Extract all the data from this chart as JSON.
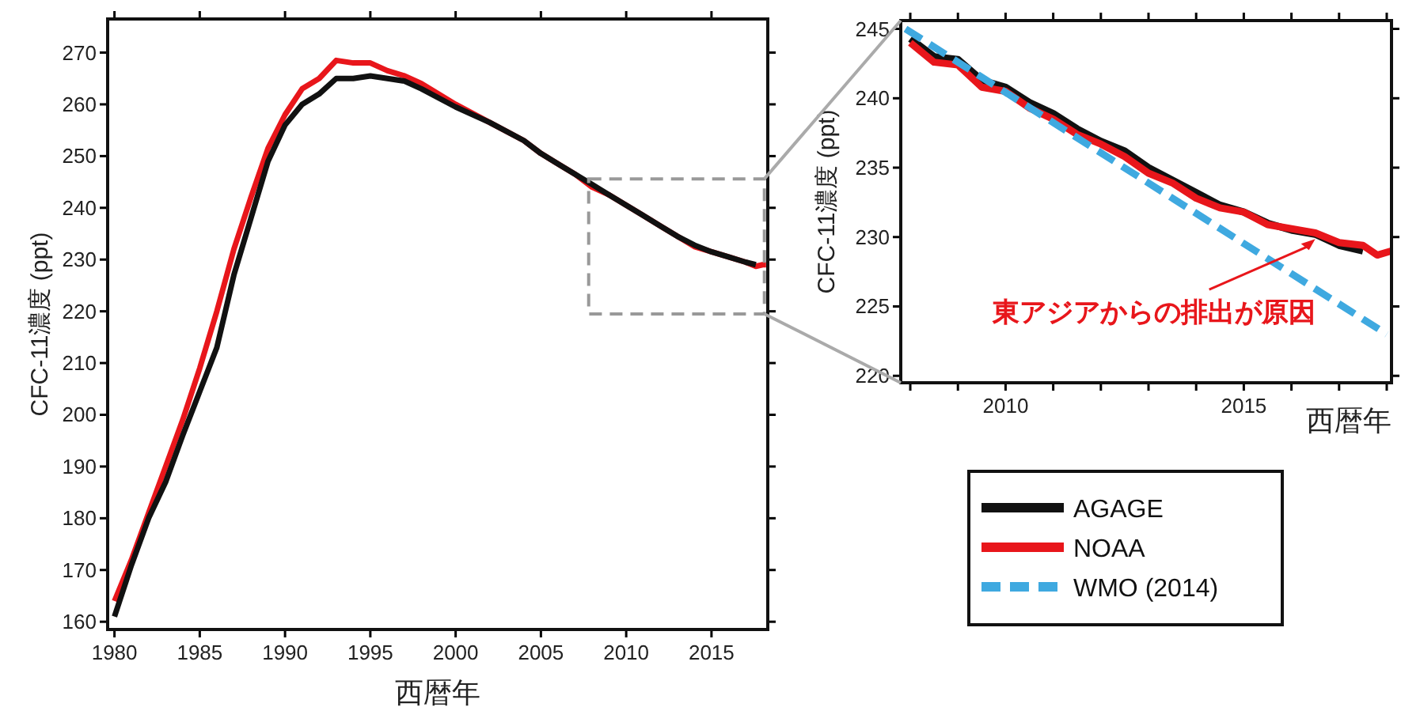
{
  "chart_data": [
    {
      "type": "line",
      "xlabel": "西暦年",
      "ylabel": "CFC-11濃度 (ppt)",
      "xlim": [
        1979.6,
        2018.3
      ],
      "ylim": [
        158.5,
        276.5
      ],
      "xticks": [
        1980,
        1985,
        1990,
        1995,
        2000,
        2005,
        2010,
        2015
      ],
      "yticks": [
        160,
        170,
        180,
        190,
        200,
        210,
        220,
        230,
        240,
        250,
        260,
        270
      ],
      "series": [
        {
          "color": "#e8161b",
          "x": [
            1980,
            1981,
            1982,
            1983,
            1984,
            1985,
            1986,
            1987,
            1988,
            1989,
            1990,
            1991,
            1992,
            1993,
            1994,
            1995,
            1996,
            1997,
            1998,
            2000,
            2002,
            2004,
            2005,
            2006,
            2007,
            2008,
            2009,
            2010,
            2011,
            2012,
            2013,
            2014,
            2015,
            2016,
            2017,
            2017.6,
            2018,
            2018.2
          ],
          "values": [
            164,
            172,
            181,
            190,
            199,
            209,
            220,
            232,
            242,
            251.5,
            258,
            263,
            265,
            268.5,
            268,
            268,
            266.5,
            265.5,
            264,
            260,
            256.5,
            253,
            250.5,
            248.5,
            246.5,
            244,
            242.5,
            240.5,
            238.5,
            236.5,
            234.5,
            232.5,
            231.5,
            230.5,
            229.5,
            228.7,
            229,
            229
          ]
        },
        {
          "color": "#111111",
          "x": [
            1980,
            1981,
            1982,
            1983,
            1984,
            1985,
            1986,
            1987,
            1988,
            1989,
            1990,
            1991,
            1992,
            1993,
            1994,
            1995,
            1996,
            1997,
            1998,
            2000,
            2002,
            2004,
            2005,
            2006,
            2007,
            2008,
            2009,
            2010,
            2011,
            2012,
            2013,
            2014,
            2015,
            2016,
            2017,
            2017.6
          ],
          "values": [
            161,
            171,
            180,
            187,
            196,
            204.5,
            213,
            227,
            238,
            249,
            256,
            260,
            262,
            265,
            265,
            265.5,
            265,
            264.5,
            263,
            259.5,
            256.5,
            253,
            250.5,
            248.5,
            246.5,
            244.5,
            242.5,
            240.5,
            238.5,
            236.5,
            234.5,
            232.8,
            231.5,
            230.5,
            229.5,
            229
          ]
        }
      ]
    },
    {
      "type": "line",
      "xlabel": "西暦年",
      "ylabel": "CFC-11濃度 (ppt)",
      "xlim": [
        2007.8,
        2018.1
      ],
      "ylim": [
        219.5,
        245.6
      ],
      "xticks": [
        {
          "value": 2008,
          "label": null
        },
        {
          "value": 2009,
          "label": null
        },
        2010,
        {
          "value": 2011,
          "label": null
        },
        {
          "value": 2012,
          "label": null
        },
        {
          "value": 2013,
          "label": null
        },
        {
          "value": 2014,
          "label": null
        },
        2015,
        {
          "value": 2016,
          "label": null
        },
        {
          "value": 2017,
          "label": null
        },
        {
          "value": 2018,
          "label": null
        }
      ],
      "yticks": [
        220,
        225,
        230,
        235,
        240,
        245
      ],
      "legend": "bottom",
      "series": [
        {
          "name": "AGAGE",
          "color": "#111111",
          "x": [
            2008,
            2008.5,
            2009,
            2009.5,
            2010,
            2010.5,
            2011,
            2011.5,
            2012,
            2012.5,
            2013,
            2013.5,
            2014,
            2014.5,
            2015,
            2015.5,
            2016,
            2016.5,
            2017,
            2017.5
          ],
          "values": [
            244.3,
            243,
            242.8,
            241.3,
            240.8,
            239.7,
            238.9,
            237.8,
            236.9,
            236.2,
            235,
            234.1,
            233.2,
            232.3,
            231.8,
            231,
            230.5,
            230.2,
            229.4,
            229
          ]
        },
        {
          "name": "NOAA",
          "color": "#e8161b",
          "x": [
            2008,
            2008.5,
            2009,
            2009.5,
            2010,
            2010.5,
            2011,
            2011.5,
            2012,
            2012.5,
            2013,
            2013.5,
            2014,
            2014.5,
            2015,
            2015.5,
            2016,
            2016.5,
            2017,
            2017.5,
            2017.8,
            2018.1
          ],
          "values": [
            244,
            242.6,
            242.4,
            240.8,
            240.5,
            239.3,
            238.5,
            237.4,
            236.7,
            235.8,
            234.6,
            233.9,
            232.8,
            232.1,
            231.8,
            230.9,
            230.6,
            230.3,
            229.6,
            229.4,
            228.7,
            229
          ]
        },
        {
          "name": "WMO (2014)",
          "color": "#3fa9e0",
          "line_style": "dashed",
          "x": [
            2007.9,
            2018
          ],
          "values": [
            245,
            223
          ]
        }
      ],
      "annotations": [
        {
          "text": "東アジアからの排出が原因",
          "x": 2016.5,
          "y": 230.2
        }
      ]
    }
  ]
}
